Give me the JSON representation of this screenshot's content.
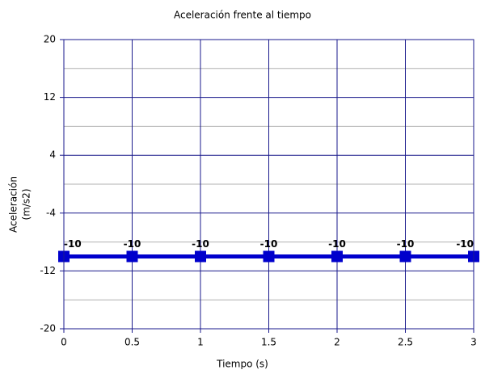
{
  "chart_data": {
    "type": "line",
    "title": "Aceleración frente al tiempo",
    "xlabel": "Tiempo (s)",
    "ylabel": [
      "Aceleración",
      "(m/s2)"
    ],
    "x": [
      0,
      0.5,
      1,
      1.5,
      2,
      2.5,
      3
    ],
    "series": [
      {
        "name": "Aceleración",
        "color": "#0000cc",
        "values": [
          -10,
          -10,
          -10,
          -10,
          -10,
          -10,
          -10
        ]
      }
    ],
    "xlim": [
      0,
      3
    ],
    "xticks": [
      0,
      0.5,
      1,
      1.5,
      2,
      2.5,
      3
    ],
    "ylim": [
      -20,
      20
    ],
    "yticks": [
      -20,
      -12,
      -4,
      4,
      12,
      20
    ],
    "minor_yticks": [
      -16,
      -8,
      0,
      8,
      16
    ],
    "grid": true,
    "marker": "square",
    "data_labels": true
  }
}
